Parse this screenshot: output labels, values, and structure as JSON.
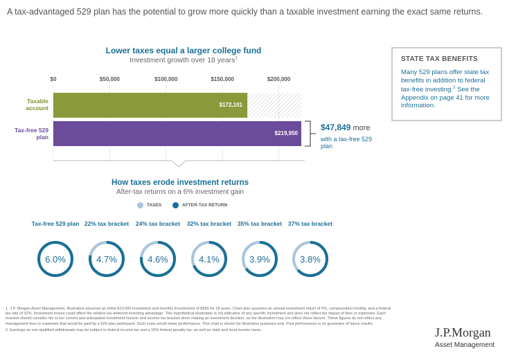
{
  "headline": "A tax-advantaged 529 plan has the potential to grow more quickly than a taxable investment earning the exact same returns.",
  "colors": {
    "taxable": "#8a9a3a",
    "tax_free": "#6b4c9a",
    "taxes": "#a9c5dc",
    "after_tax": "#1a6f96",
    "accent": "#1a6f96"
  },
  "chart_data": [
    {
      "type": "bar",
      "orientation": "horizontal",
      "title": "Lower taxes equal a larger college fund",
      "subtitle": "Investment growth over 18 years",
      "title_footnote": "1",
      "categories": [
        "Taxable account",
        "Tax-free 529 plan"
      ],
      "values": [
        172101,
        219950
      ],
      "value_labels": [
        "$172,101",
        "$219,950"
      ],
      "ticks": [
        "$0",
        "$50,000",
        "$100,000",
        "$150,000",
        "$200,000"
      ],
      "tick_values": [
        0,
        50000,
        100000,
        150000,
        200000
      ],
      "xlim": [
        0,
        219950
      ],
      "difference": {
        "amount": "$47,849",
        "suffix": "more",
        "note": "with a tax-free 529 plan"
      }
    },
    {
      "type": "pie",
      "title": "How taxes erode investment returns",
      "subtitle": "After-tax returns on a 6% investment gain",
      "legend": [
        "TAXES",
        "AFTER-TAX RETURN"
      ],
      "gain_total": 6.0,
      "categories": [
        "Tax-free 529 plan",
        "22% tax bracket",
        "24% tax bracket",
        "32% tax bracket",
        "35% tax bracket",
        "37% tax bracket"
      ],
      "values": [
        6.0,
        4.7,
        4.6,
        4.1,
        3.9,
        3.8
      ],
      "value_labels": [
        "6.0%",
        "4.7%",
        "4.6%",
        "4.1%",
        "3.9%",
        "3.8%"
      ]
    }
  ],
  "state_tax": {
    "title": "STATE TAX BENEFITS",
    "body": "Many 529 plans offer state tax benefits in addition to federal tax-free investing.",
    "footnote_ref": "2",
    "body2": "See the Appendix on page 41 for more information."
  },
  "footnotes": [
    "1. J.P. Morgan Asset Management. Illustration assumes an initial $10,000 investment and monthly investments of $500 for 18 years. Chart also assumes an annual investment return of 6%, compounded monthly, and a federal tax rate of 32%. Investment losses could affect the relative tax-deferred investing advantage. This hypothetical illustration is not indicative of any specific investment and does not reflect the impact of fees or expenses. Each investor should consider his or her current and anticipated investment horizon and income tax bracket when making an investment decision, as the illustration may not reflect these factors. These figures do not reflect any management fees or expenses that would be paid by a 529 plan participant. Such costs would lower performance. This chart is shown for illustrative purposes only. Past performance is no guarantee of future results.",
    "2. Earnings on non-qualified withdrawals may be subject to federal income tax and a 10% federal penalty tax, as well as state and local income taxes."
  ],
  "logo": {
    "name": "J.P.Morgan",
    "sub": "Asset Management"
  }
}
